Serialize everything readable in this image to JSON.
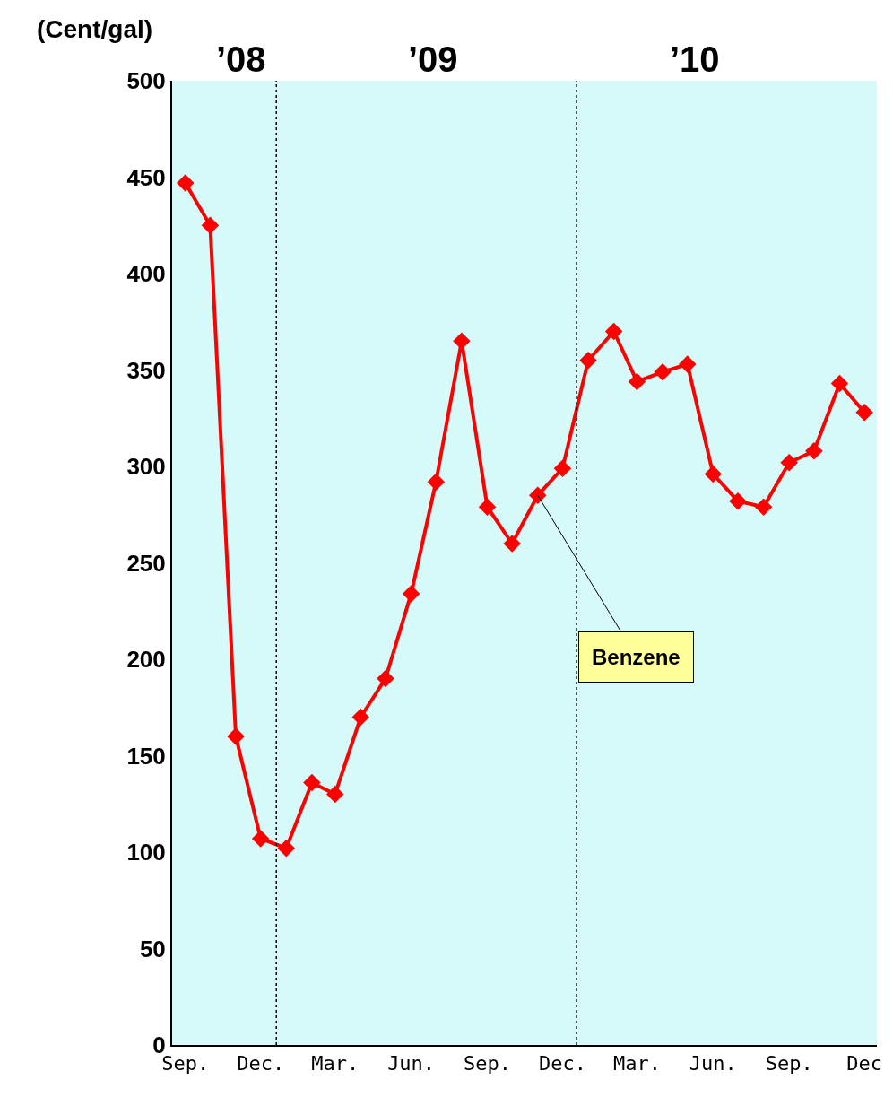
{
  "chart_data": {
    "type": "line",
    "ylabel": "(Cent/gal)",
    "annotations": [
      "’08",
      "’09",
      "’10"
    ],
    "x": [
      "2008-09",
      "2008-10",
      "2008-11",
      "2008-12",
      "2009-01",
      "2009-02",
      "2009-03",
      "2009-04",
      "2009-05",
      "2009-06",
      "2009-07",
      "2009-08",
      "2009-09",
      "2009-10",
      "2009-11",
      "2009-12",
      "2010-01",
      "2010-02",
      "2010-03",
      "2010-04",
      "2010-05",
      "2010-06",
      "2010-07",
      "2010-08",
      "2010-09",
      "2010-10",
      "2010-11",
      "2010-12"
    ],
    "series": [
      {
        "name": "Benzene",
        "color": "#ff0000",
        "values": [
          447,
          425,
          160,
          107,
          102,
          136,
          130,
          170,
          190,
          234,
          292,
          365,
          279,
          260,
          285,
          299,
          355,
          370,
          344,
          349,
          353,
          296,
          282,
          279,
          302,
          308,
          343,
          328
        ]
      }
    ],
    "xlim": [
      "2008-08-16",
      "2010-12-16"
    ],
    "xticks": [
      {
        "value": "2008-09",
        "label": "Sep."
      },
      {
        "value": "2008-12",
        "label": "Dec."
      },
      {
        "value": "2009-03",
        "label": "Mar."
      },
      {
        "value": "2009-06",
        "label": "Jun."
      },
      {
        "value": "2009-09",
        "label": "Sep."
      },
      {
        "value": "2009-12",
        "label": "Dec."
      },
      {
        "value": "2010-03",
        "label": "Mar."
      },
      {
        "value": "2010-06",
        "label": "Jun."
      },
      {
        "value": "2010-09",
        "label": "Sep."
      },
      {
        "value": "2010-12",
        "label": "Dec"
      }
    ],
    "ylim": [
      0,
      500
    ],
    "yticks": [
      0,
      50,
      100,
      150,
      200,
      250,
      300,
      350,
      400,
      450,
      500
    ],
    "ref_lines": [
      {
        "axis": "x",
        "value": "2008-12-20",
        "color": "#000000",
        "line_style": "dotted"
      },
      {
        "axis": "x",
        "value": "2009-12-18",
        "color": "#000000",
        "line_style": "dotted"
      }
    ],
    "grid": false,
    "legend": false,
    "marker": "diamond",
    "line_style": "solid"
  }
}
